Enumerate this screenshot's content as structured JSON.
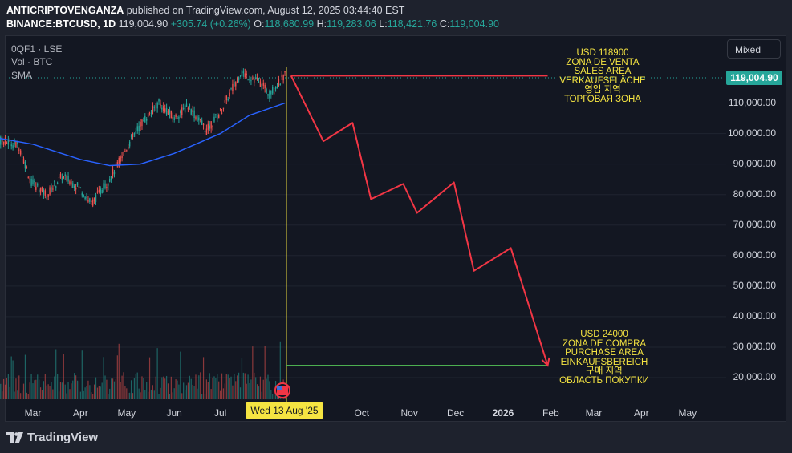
{
  "header": {
    "author": "ANTICRIPTOVENGANZA",
    "published_text": "published on TradingView.com, August 12, 2025 03:44:40 EST",
    "symbol": "BINANCE:BTCUSD, 1D",
    "last": "119,004.90",
    "change": "+305.74 (+0.26%)",
    "open_label": "O:",
    "open": "118,680.99",
    "high_label": "H:",
    "high": "119,283.06",
    "low_label": "L:",
    "low": "118,421.76",
    "close_label": "C:",
    "close": "119,004.90"
  },
  "legend": [
    "0QF1 · LSE",
    "Vol · BTC",
    "SMA"
  ],
  "scale_mode": "Mixed",
  "current_price_badge": "119,004.90",
  "colors": {
    "background": "#131722",
    "bull": "#26a69a",
    "bear": "#ef5350",
    "sma": "#2962ff",
    "projection": "#f23645",
    "sell_line": "#f23645",
    "buy_line": "#4caf50",
    "annotation": "#f5e442",
    "cursor_line": "#f5e442"
  },
  "date_badge": "Wed 13 Aug '25",
  "annotations": {
    "sell": [
      "USD 118900",
      "ZONA DE VENTA",
      "SALES AREA",
      "VERKAUFSFLÄCHE",
      "영업 지역",
      "ТОРГОВАЯ ЗОНА"
    ],
    "buy": [
      "USD 24000",
      "ZONA DE COMPRA",
      "PURCHASE AREA",
      "EINKAUFSBEREICH",
      "구매 지역",
      "ОБЛАСТЬ ПОКУПКИ"
    ]
  },
  "footer": {
    "brand": "TradingView"
  },
  "chart_data": {
    "type": "line",
    "title": "",
    "xlabel": "",
    "ylabel": "",
    "ylim": [
      14000,
      136000
    ],
    "y_ticks": [
      "110,000.00",
      "100,000.00",
      "90,000.00",
      "80,000.00",
      "70,000.00",
      "60,000.00",
      "50,000.00",
      "40,000.00",
      "30,000.00",
      "20,000.00"
    ],
    "y_tick_values": [
      110000,
      100000,
      90000,
      80000,
      70000,
      60000,
      50000,
      40000,
      30000,
      20000
    ],
    "x_ticks": [
      {
        "label": "Mar",
        "date": "2025-03-01"
      },
      {
        "label": "Apr",
        "date": "2025-04-01"
      },
      {
        "label": "May",
        "date": "2025-05-01"
      },
      {
        "label": "Jun",
        "date": "2025-06-01"
      },
      {
        "label": "Jul",
        "date": "2025-07-01"
      },
      {
        "label": "Oct",
        "date": "2025-10-01"
      },
      {
        "label": "Nov",
        "date": "2025-11-01"
      },
      {
        "label": "Dec",
        "date": "2025-12-01"
      },
      {
        "label": "2026",
        "date": "2026-01-01",
        "bold": true
      },
      {
        "label": "Feb",
        "date": "2026-02-01"
      },
      {
        "label": "Mar",
        "date": "2026-03-01"
      },
      {
        "label": "Apr",
        "date": "2026-04-01"
      },
      {
        "label": "May",
        "date": "2026-05-01"
      }
    ],
    "price_path": [
      {
        "date": "2025-02-01",
        "price": 98000
      },
      {
        "date": "2025-02-10",
        "price": 97500
      },
      {
        "date": "2025-02-20",
        "price": 96000
      },
      {
        "date": "2025-02-28",
        "price": 84000
      },
      {
        "date": "2025-03-10",
        "price": 80000
      },
      {
        "date": "2025-03-20",
        "price": 86000
      },
      {
        "date": "2025-03-31",
        "price": 82500
      },
      {
        "date": "2025-04-08",
        "price": 77000
      },
      {
        "date": "2025-04-20",
        "price": 85000
      },
      {
        "date": "2025-04-30",
        "price": 94500
      },
      {
        "date": "2025-05-10",
        "price": 103000
      },
      {
        "date": "2025-05-22",
        "price": 110000
      },
      {
        "date": "2025-06-01",
        "price": 105000
      },
      {
        "date": "2025-06-10",
        "price": 109000
      },
      {
        "date": "2025-06-22",
        "price": 101000
      },
      {
        "date": "2025-07-01",
        "price": 107000
      },
      {
        "date": "2025-07-10",
        "price": 116000
      },
      {
        "date": "2025-07-14",
        "price": 120000
      },
      {
        "date": "2025-07-25",
        "price": 117500
      },
      {
        "date": "2025-08-02",
        "price": 113000
      },
      {
        "date": "2025-08-12",
        "price": 119000
      }
    ],
    "sma_path": [
      {
        "date": "2025-02-01",
        "price": 99000
      },
      {
        "date": "2025-03-01",
        "price": 96500
      },
      {
        "date": "2025-04-01",
        "price": 91500
      },
      {
        "date": "2025-04-20",
        "price": 89500
      },
      {
        "date": "2025-05-10",
        "price": 90000
      },
      {
        "date": "2025-06-01",
        "price": 93500
      },
      {
        "date": "2025-07-01",
        "price": 100000
      },
      {
        "date": "2025-07-20",
        "price": 106000
      },
      {
        "date": "2025-08-12",
        "price": 110000
      }
    ],
    "projection": [
      {
        "date": "2025-08-16",
        "price": 119000
      },
      {
        "date": "2025-09-06",
        "price": 97500
      },
      {
        "date": "2025-09-25",
        "price": 103500
      },
      {
        "date": "2025-10-07",
        "price": 78500
      },
      {
        "date": "2025-10-28",
        "price": 83500
      },
      {
        "date": "2025-11-06",
        "price": 74000
      },
      {
        "date": "2025-11-30",
        "price": 84000
      },
      {
        "date": "2025-12-13",
        "price": 55000
      },
      {
        "date": "2026-01-06",
        "price": 62500
      },
      {
        "date": "2026-01-30",
        "price": 24000
      }
    ],
    "sell_zone": {
      "price": 118900,
      "from": "2025-08-16",
      "to": "2026-01-30"
    },
    "buy_zone": {
      "price": 24000,
      "from": "2025-08-13",
      "to": "2026-01-30"
    },
    "cursor_date": "2025-08-13"
  }
}
